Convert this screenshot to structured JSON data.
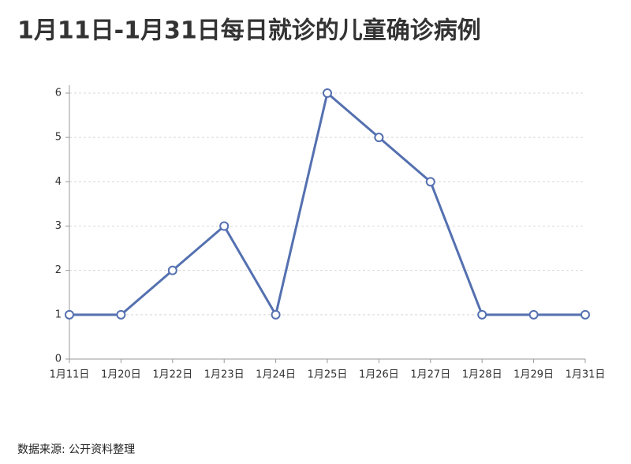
{
  "chart_data": {
    "type": "line",
    "title": "1月11日-1月31日每日就诊的儿童确诊病例",
    "categories": [
      "1月11日",
      "1月20日",
      "1月22日",
      "1月23日",
      "1月24日",
      "1月25日",
      "1月26日",
      "1月27日",
      "1月28日",
      "1月29日",
      "1月31日"
    ],
    "values": [
      1,
      1,
      2,
      3,
      1,
      6,
      5,
      4,
      1,
      1,
      1
    ],
    "color": "#5470b0",
    "ylim": [
      0,
      6
    ],
    "yticks": [
      0,
      1,
      2,
      3,
      4,
      5,
      6
    ],
    "grid": true,
    "source": "数据来源: 公开资料整理"
  }
}
